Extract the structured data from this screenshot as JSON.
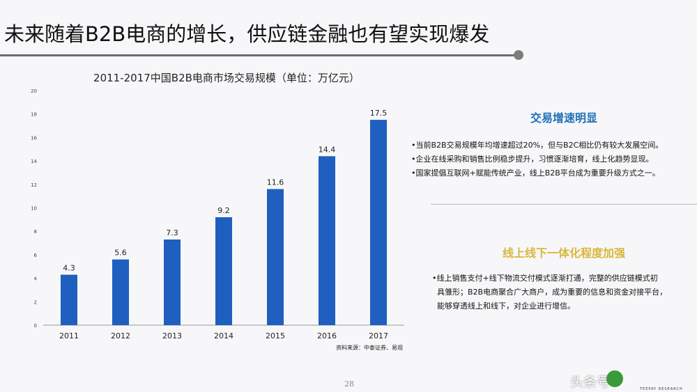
{
  "slide": {
    "title": "未来随着B2B电商的增长，供应链金融也有望实现爆发",
    "page_number": "28",
    "source": "资料来源：中泰证券、易观",
    "watermark": "头条号",
    "logo_text": "TEEPAY RESEARCH"
  },
  "chart_data": {
    "type": "bar",
    "title": "2011-2017中国B2B电商市场交易规模（单位：万亿元）",
    "categories": [
      "2011",
      "2012",
      "2013",
      "2014",
      "2015",
      "2016",
      "2017"
    ],
    "values": [
      4.3,
      5.6,
      7.3,
      9.2,
      11.6,
      14.4,
      17.5
    ],
    "ylim": [
      0,
      20
    ],
    "yticks": [
      0,
      2,
      4,
      6,
      8,
      10,
      12,
      14,
      16,
      18,
      20
    ],
    "grid": false,
    "bar_color": "#1f5fbf",
    "xlabel": "",
    "ylabel": ""
  },
  "panel": {
    "section1": {
      "heading": "交易增速明显",
      "color": "#1f6fb8",
      "bullets": [
        "•当前B2B交易规模年均增速超过20%，但与B2C相比仍有较大发展空间。",
        "•企业在线采购和销售比例稳步提升，习惯逐渐培育，线上化趋势显现。",
        "•国家提倡互联网+赋能传统产业，线上B2B平台成为重要升级方式之一。"
      ]
    },
    "section2": {
      "heading": "线上线下一体化程度加强",
      "color": "#d8b73a",
      "bullets": [
        "•线上销售支付+线下物流交付模式逐渐打通，完整的供应链模式初",
        "具雏形；B2B电商聚合广大商户，成为重要的信息和资金对接平台，",
        "能够穿透线上和线下，对企业进行增信。"
      ]
    }
  }
}
